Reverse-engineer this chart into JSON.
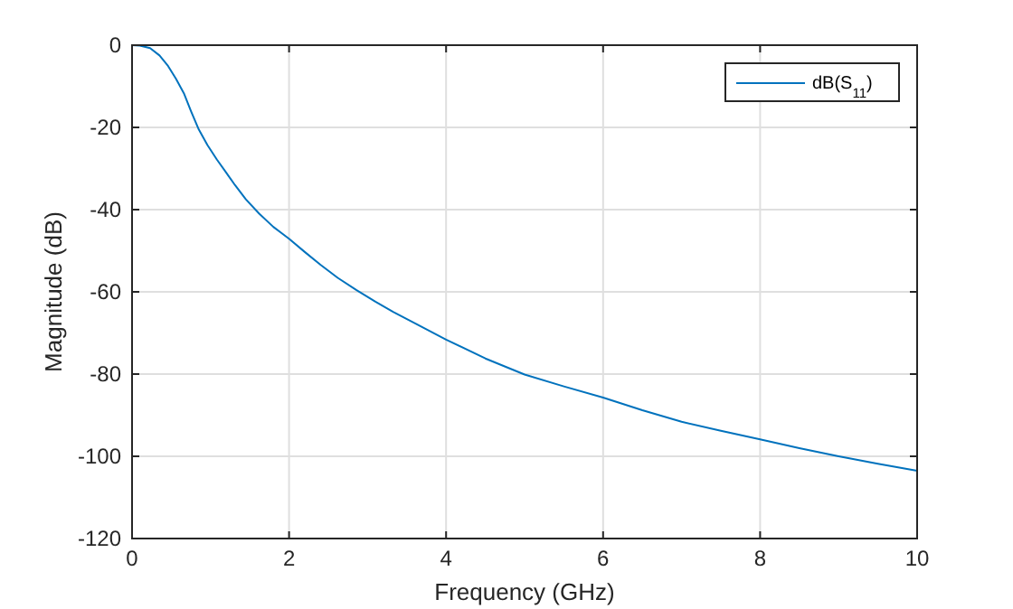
{
  "chart_data": {
    "type": "line",
    "xlabel": "Frequency (GHz)",
    "ylabel": "Magnitude (dB)",
    "xlim": [
      0,
      10
    ],
    "ylim": [
      -120,
      0
    ],
    "xticks": [
      0,
      2,
      4,
      6,
      8,
      10
    ],
    "yticks": [
      -120,
      -100,
      -80,
      -60,
      -40,
      -20,
      0
    ],
    "grid": true,
    "legend": "top right",
    "line_style": "solid",
    "series": [
      {
        "name": "dB(S$_{11}$)",
        "color": "#0072bd",
        "x": [
          0,
          0.1,
          0.23,
          0.35,
          0.46,
          0.56,
          0.66,
          0.75,
          0.85,
          0.96,
          1.08,
          1.2,
          1.31,
          1.45,
          1.62,
          1.8,
          2.0,
          2.2,
          2.4,
          2.62,
          2.86,
          3.1,
          3.33,
          3.6,
          4.0,
          4.5,
          5.0,
          5.5,
          6.0,
          6.5,
          7.0,
          7.5,
          8.0,
          8.5,
          9.0,
          9.5,
          10.0
        ],
        "values": [
          0,
          -0.1,
          -0.7,
          -2.5,
          -5.1,
          -8.2,
          -11.7,
          -16,
          -20.5,
          -24.3,
          -27.8,
          -31,
          -34,
          -37.5,
          -41,
          -44.2,
          -47.1,
          -50.3,
          -53.4,
          -56.6,
          -59.6,
          -62.4,
          -64.9,
          -67.6,
          -71.6,
          -76.2,
          -80.1,
          -83,
          -85.7,
          -88.8,
          -91.6,
          -93.8,
          -95.9,
          -98,
          -100,
          -101.8,
          -103.5
        ]
      }
    ]
  }
}
